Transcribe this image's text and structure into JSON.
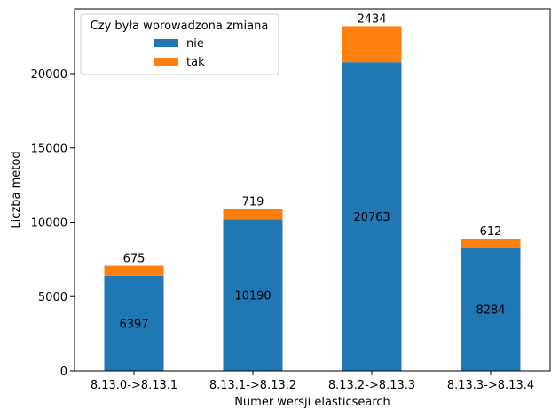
{
  "chart_data": {
    "type": "bar",
    "stacked": true,
    "categories": [
      "8.13.0->8.13.1",
      "8.13.1->8.13.2",
      "8.13.2->8.13.3",
      "8.13.3->8.13.4"
    ],
    "series": [
      {
        "name": "nie",
        "values": [
          6397,
          10190,
          20763,
          8284
        ],
        "color": "#1f77b4"
      },
      {
        "name": "tak",
        "values": [
          675,
          719,
          2434,
          612
        ],
        "color": "#ff7f0e"
      }
    ],
    "xlabel": "Numer wersji elasticsearch",
    "ylabel": "Liczba metod",
    "ylim": [
      0,
      24357
    ],
    "yticks": [
      0,
      5000,
      10000,
      15000,
      20000
    ],
    "legend": {
      "title": "Czy była wprowadzona zmiana",
      "placement": "top-left"
    },
    "grid": false
  }
}
